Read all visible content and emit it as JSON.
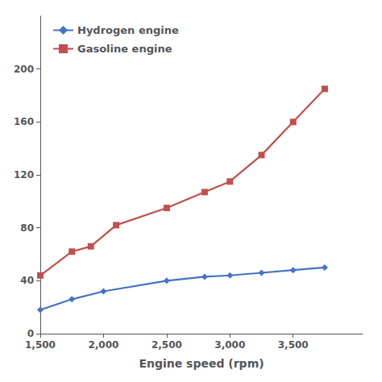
{
  "chart_data": {
    "type": "line",
    "xlabel": "Engine speed (rpm)",
    "series": [
      {
        "name": "Hydrogen engine",
        "color": "#4472c4",
        "marker": "diamond",
        "x": [
          1500,
          1750,
          2000,
          2500,
          2800,
          3000,
          3250,
          3500,
          3750
        ],
        "values": [
          18,
          26,
          32,
          40,
          43,
          44,
          46,
          48,
          50
        ]
      },
      {
        "name": "Gasoline engine",
        "color": "#c0504d",
        "marker": "square",
        "x": [
          1500,
          1750,
          1900,
          2100,
          2500,
          2800,
          3000,
          3250,
          3500,
          3750
        ],
        "values": [
          44,
          62,
          66,
          82,
          95,
          107,
          115,
          135,
          160,
          185
        ]
      }
    ],
    "xlim": [
      1500,
      4050
    ],
    "xticks": [
      1500,
      2000,
      2500,
      3000,
      3500
    ],
    "ylim": [
      0,
      240
    ],
    "yticks": [
      0,
      40,
      80,
      120,
      160,
      200
    ],
    "grid": false,
    "legend": "upper left"
  }
}
